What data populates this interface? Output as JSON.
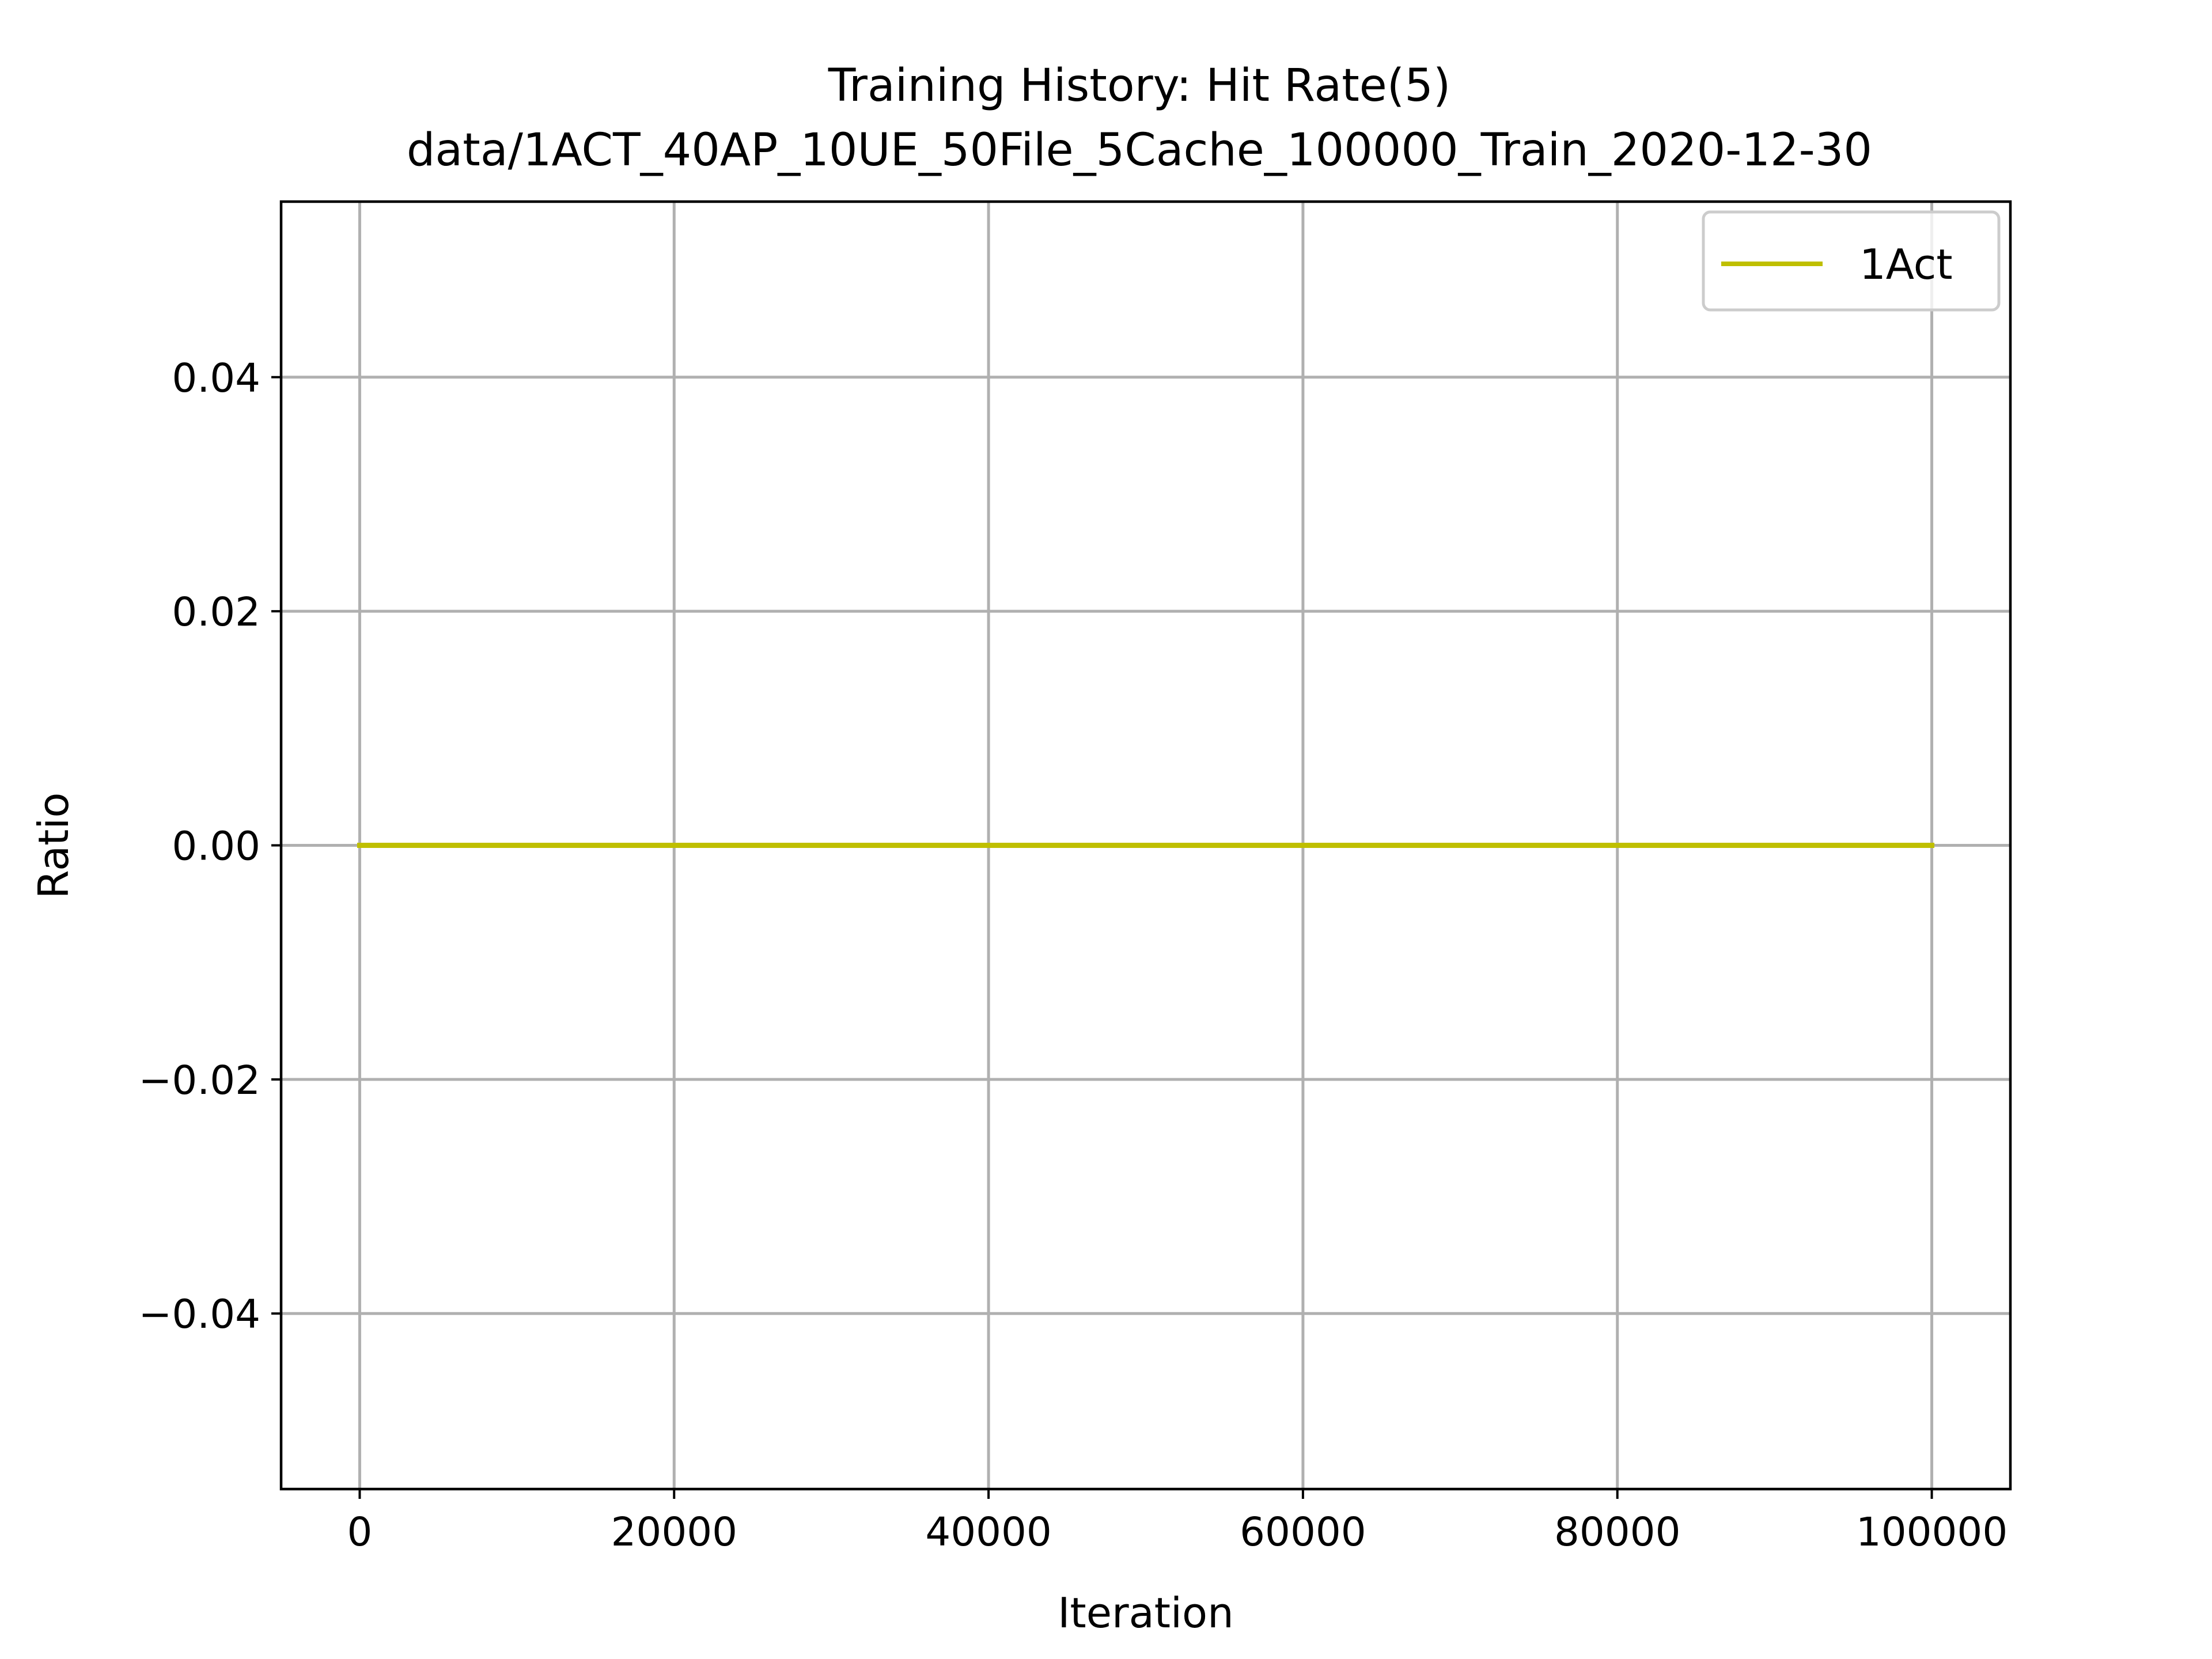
{
  "chart_data": {
    "type": "line",
    "title": "Training History: Hit Rate(5)",
    "subtitle": "data/1ACT_40AP_10UE_50File_5Cache_100000_Train_2020-12-30",
    "xlabel": "Iteration",
    "ylabel": "Ratio",
    "xlim": [
      -5000,
      105000
    ],
    "ylim": [
      -0.055,
      0.055
    ],
    "x_ticks": [
      0,
      20000,
      40000,
      60000,
      80000,
      100000
    ],
    "x_tick_labels": [
      "0",
      "20000",
      "40000",
      "60000",
      "80000",
      "100000"
    ],
    "y_ticks": [
      -0.04,
      -0.02,
      0.0,
      0.02,
      0.04
    ],
    "y_tick_labels": [
      "−0.04",
      "−0.02",
      "0.00",
      "0.02",
      "0.04"
    ],
    "grid": true,
    "legend_position": "upper right",
    "series": [
      {
        "name": "1Act",
        "color": "#bfbf00",
        "x": [
          0,
          100000
        ],
        "y": [
          0,
          0
        ]
      }
    ]
  }
}
